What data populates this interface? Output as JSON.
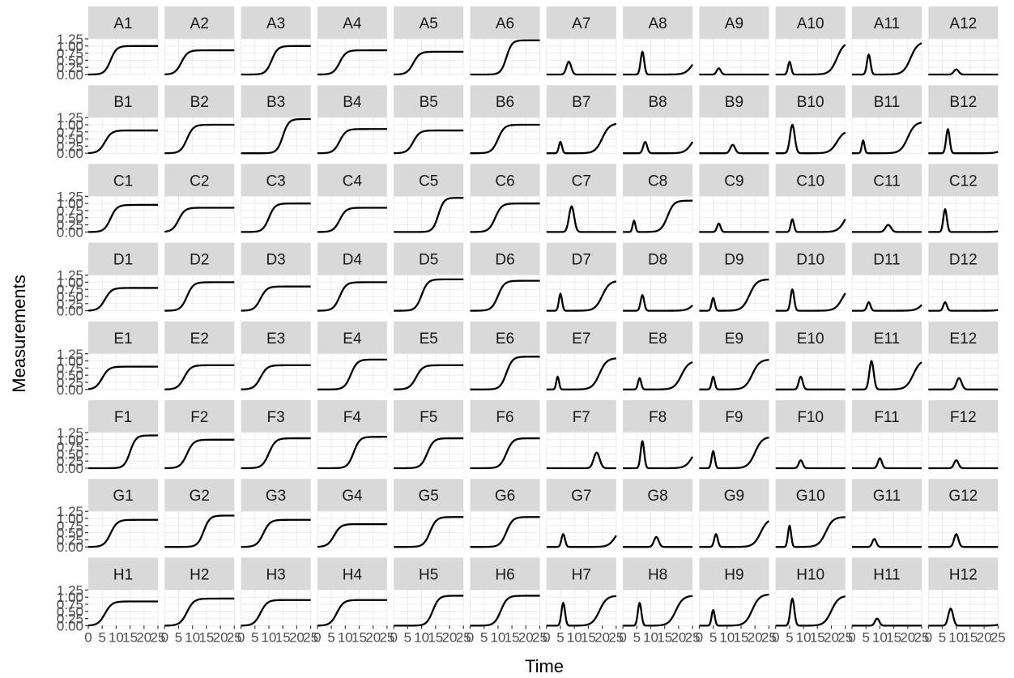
{
  "chart_data": {
    "type": "line",
    "facet_layout": "8 rows x 12 columns, free y-axis ticks on first column, x-axis ticks on bottom row",
    "xlabel": "Time",
    "ylabel": "Measurements",
    "x_ticks": [
      "0",
      "5",
      "10",
      "15",
      "20",
      "25"
    ],
    "y_ticks": [
      "0.00",
      "0.25",
      "0.50",
      "0.75",
      "1.00",
      "1.25"
    ],
    "xlim": [
      0,
      25
    ],
    "ylim": [
      0,
      1.25
    ],
    "grid": true,
    "colors": {
      "line": "#000000",
      "strip": "#d9d9d9",
      "grid": "#ebebeb"
    },
    "facets": [
      {
        "label": "A1",
        "kind": "s",
        "p": [
          8,
          1.0,
          1.1
        ]
      },
      {
        "label": "A2",
        "kind": "s",
        "p": [
          6,
          0.85,
          1.15
        ]
      },
      {
        "label": "A3",
        "kind": "s",
        "p": [
          11,
          1.0,
          1.1
        ]
      },
      {
        "label": "A4",
        "kind": "s",
        "p": [
          8,
          0.85,
          1.15
        ]
      },
      {
        "label": "A5",
        "kind": "s",
        "p": [
          7,
          0.8,
          1.15
        ]
      },
      {
        "label": "A6",
        "kind": "s",
        "p": [
          13,
          1.2,
          1.0
        ]
      },
      {
        "label": "A7",
        "kind": "p",
        "p": [
          8,
          0.45,
          1.2
        ]
      },
      {
        "label": "A8",
        "kind": "ps",
        "p": [
          7,
          0.8,
          0.9,
          25,
          0.7,
          1.3
        ]
      },
      {
        "label": "A9",
        "kind": "p",
        "p": [
          7,
          0.22,
          1.0
        ]
      },
      {
        "label": "A10",
        "kind": "ps",
        "p": [
          5,
          0.45,
          0.8,
          22,
          1.15,
          1.3
        ]
      },
      {
        "label": "A11",
        "kind": "ps",
        "p": [
          6,
          0.7,
          0.9,
          21,
          1.15,
          1.3
        ]
      },
      {
        "label": "A12",
        "kind": "p",
        "p": [
          10,
          0.18,
          1.2
        ]
      },
      {
        "label": "B1",
        "kind": "s",
        "p": [
          6,
          0.8,
          1.2
        ]
      },
      {
        "label": "B2",
        "kind": "s",
        "p": [
          8,
          1.0,
          1.15
        ]
      },
      {
        "label": "B3",
        "kind": "s",
        "p": [
          15,
          1.2,
          1.05
        ]
      },
      {
        "label": "B4",
        "kind": "s",
        "p": [
          8,
          0.85,
          1.15
        ]
      },
      {
        "label": "B5",
        "kind": "s",
        "p": [
          7,
          0.8,
          1.15
        ]
      },
      {
        "label": "B6",
        "kind": "s",
        "p": [
          10,
          1.0,
          1.15
        ]
      },
      {
        "label": "B7",
        "kind": "ps",
        "p": [
          5,
          0.4,
          0.8,
          20,
          1.05,
          1.3
        ]
      },
      {
        "label": "B8",
        "kind": "ps",
        "p": [
          8,
          0.4,
          1.0,
          25,
          0.8,
          1.3
        ]
      },
      {
        "label": "B9",
        "kind": "p",
        "p": [
          12,
          0.3,
          1.2
        ]
      },
      {
        "label": "B10",
        "kind": "ps",
        "p": [
          6,
          1.0,
          1.2,
          22,
          0.8,
          1.3
        ]
      },
      {
        "label": "B11",
        "kind": "ps",
        "p": [
          4,
          0.45,
          0.7,
          20,
          1.1,
          1.3
        ]
      },
      {
        "label": "B12",
        "kind": "ps",
        "p": [
          7,
          0.85,
          0.9,
          27,
          0.3,
          1.3
        ]
      },
      {
        "label": "C1",
        "kind": "s",
        "p": [
          8,
          0.95,
          1.15
        ]
      },
      {
        "label": "C2",
        "kind": "s",
        "p": [
          5,
          0.85,
          1.15
        ]
      },
      {
        "label": "C3",
        "kind": "s",
        "p": [
          10,
          1.0,
          1.1
        ]
      },
      {
        "label": "C4",
        "kind": "s",
        "p": [
          8,
          0.85,
          1.15
        ]
      },
      {
        "label": "C5",
        "kind": "s",
        "p": [
          16,
          1.2,
          1.0
        ]
      },
      {
        "label": "C6",
        "kind": "s",
        "p": [
          9,
          1.0,
          1.15
        ]
      },
      {
        "label": "C7",
        "kind": "p",
        "p": [
          9,
          0.9,
          1.3
        ]
      },
      {
        "label": "C8",
        "kind": "ps",
        "p": [
          4,
          0.4,
          0.7,
          16,
          1.1,
          1.15
        ]
      },
      {
        "label": "C9",
        "kind": "p",
        "p": [
          7,
          0.3,
          0.9
        ]
      },
      {
        "label": "C10",
        "kind": "ps",
        "p": [
          6,
          0.45,
          0.8,
          25,
          0.9,
          1.3
        ]
      },
      {
        "label": "C11",
        "kind": "p",
        "p": [
          13,
          0.25,
          1.4
        ]
      },
      {
        "label": "C12",
        "kind": "ps",
        "p": [
          6,
          0.8,
          0.9,
          28,
          0.3,
          1.3
        ]
      },
      {
        "label": "D1",
        "kind": "s",
        "p": [
          6,
          0.8,
          1.2
        ]
      },
      {
        "label": "D2",
        "kind": "s",
        "p": [
          8,
          1.0,
          1.15
        ]
      },
      {
        "label": "D3",
        "kind": "s",
        "p": [
          7,
          0.85,
          1.15
        ]
      },
      {
        "label": "D4",
        "kind": "s",
        "p": [
          8,
          1.0,
          1.15
        ]
      },
      {
        "label": "D5",
        "kind": "s",
        "p": [
          10,
          1.1,
          1.1
        ]
      },
      {
        "label": "D6",
        "kind": "s",
        "p": [
          10,
          1.05,
          1.15
        ]
      },
      {
        "label": "D7",
        "kind": "ps",
        "p": [
          5,
          0.6,
          0.8,
          20,
          1.05,
          1.3
        ]
      },
      {
        "label": "D8",
        "kind": "ps",
        "p": [
          7,
          0.55,
          0.9,
          26,
          0.6,
          1.3
        ]
      },
      {
        "label": "D9",
        "kind": "ps",
        "p": [
          5,
          0.45,
          0.8,
          18,
          1.1,
          1.3
        ]
      },
      {
        "label": "D10",
        "kind": "ps",
        "p": [
          6,
          0.75,
          0.9,
          24,
          0.9,
          1.3
        ]
      },
      {
        "label": "D11",
        "kind": "ps",
        "p": [
          6,
          0.3,
          0.9,
          26,
          0.65,
          1.3
        ]
      },
      {
        "label": "D12",
        "kind": "ps",
        "p": [
          6,
          0.3,
          0.9,
          28,
          0.3,
          1.3
        ]
      },
      {
        "label": "E1",
        "kind": "s",
        "p": [
          5,
          0.8,
          1.2
        ]
      },
      {
        "label": "E2",
        "kind": "s",
        "p": [
          7,
          0.85,
          1.2
        ]
      },
      {
        "label": "E3",
        "kind": "s",
        "p": [
          7,
          0.85,
          1.2
        ]
      },
      {
        "label": "E4",
        "kind": "s",
        "p": [
          12,
          1.05,
          1.15
        ]
      },
      {
        "label": "E5",
        "kind": "s",
        "p": [
          8,
          0.85,
          1.2
        ]
      },
      {
        "label": "E6",
        "kind": "s",
        "p": [
          13,
          1.15,
          1.1
        ]
      },
      {
        "label": "E7",
        "kind": "ps",
        "p": [
          4,
          0.45,
          0.7,
          19,
          1.1,
          1.3
        ]
      },
      {
        "label": "E8",
        "kind": "ps",
        "p": [
          6,
          0.4,
          0.8,
          21,
          1.0,
          1.3
        ]
      },
      {
        "label": "E9",
        "kind": "ps",
        "p": [
          5,
          0.45,
          0.8,
          19,
          1.05,
          1.3
        ]
      },
      {
        "label": "E10",
        "kind": "p",
        "p": [
          9,
          0.45,
          1.0
        ]
      },
      {
        "label": "E11",
        "kind": "ps",
        "p": [
          7,
          1.0,
          1.1,
          22,
          1.05,
          1.3
        ]
      },
      {
        "label": "E12",
        "kind": "p",
        "p": [
          11,
          0.4,
          1.3
        ]
      },
      {
        "label": "F1",
        "kind": "s",
        "p": [
          15,
          1.15,
          1.05
        ]
      },
      {
        "label": "F2",
        "kind": "s",
        "p": [
          8,
          1.0,
          1.2
        ]
      },
      {
        "label": "F3",
        "kind": "s",
        "p": [
          10,
          1.05,
          1.2
        ]
      },
      {
        "label": "F4",
        "kind": "s",
        "p": [
          13,
          1.1,
          1.1
        ]
      },
      {
        "label": "F5",
        "kind": "s",
        "p": [
          12,
          1.05,
          1.15
        ]
      },
      {
        "label": "F6",
        "kind": "s",
        "p": [
          13,
          1.05,
          1.15
        ]
      },
      {
        "label": "F7",
        "kind": "p",
        "p": [
          18,
          0.55,
          1.5
        ]
      },
      {
        "label": "F8",
        "kind": "ps",
        "p": [
          7,
          0.95,
          0.9,
          25,
          0.8,
          1.3
        ]
      },
      {
        "label": "F9",
        "kind": "ps",
        "p": [
          5,
          0.6,
          0.8,
          20,
          1.1,
          1.3
        ]
      },
      {
        "label": "F10",
        "kind": "p",
        "p": [
          9,
          0.28,
          1.0
        ]
      },
      {
        "label": "F11",
        "kind": "p",
        "p": [
          10,
          0.35,
          1.0
        ]
      },
      {
        "label": "F12",
        "kind": "p",
        "p": [
          10,
          0.28,
          1.1
        ]
      },
      {
        "label": "G1",
        "kind": "s",
        "p": [
          8,
          0.95,
          1.2
        ]
      },
      {
        "label": "G2",
        "kind": "s",
        "p": [
          14,
          1.1,
          1.1
        ]
      },
      {
        "label": "G3",
        "kind": "s",
        "p": [
          8,
          0.95,
          1.2
        ]
      },
      {
        "label": "G4",
        "kind": "s",
        "p": [
          6,
          0.8,
          1.2
        ]
      },
      {
        "label": "G5",
        "kind": "s",
        "p": [
          13,
          1.05,
          1.15
        ]
      },
      {
        "label": "G6",
        "kind": "s",
        "p": [
          13,
          1.05,
          1.15
        ]
      },
      {
        "label": "G7",
        "kind": "ps",
        "p": [
          6,
          0.45,
          0.9,
          25,
          0.8,
          1.3
        ]
      },
      {
        "label": "G8",
        "kind": "p",
        "p": [
          12,
          0.35,
          1.2
        ]
      },
      {
        "label": "G9",
        "kind": "ps",
        "p": [
          6,
          0.45,
          0.9,
          22,
          1.0,
          1.3
        ]
      },
      {
        "label": "G10",
        "kind": "ps",
        "p": [
          5,
          0.75,
          0.8,
          18,
          1.05,
          1.3
        ]
      },
      {
        "label": "G11",
        "kind": "p",
        "p": [
          8,
          0.28,
          1.0
        ]
      },
      {
        "label": "G12",
        "kind": "p",
        "p": [
          10,
          0.45,
          1.1
        ]
      },
      {
        "label": "H1",
        "kind": "s",
        "p": [
          6,
          0.85,
          1.25
        ]
      },
      {
        "label": "H2",
        "kind": "s",
        "p": [
          8,
          0.95,
          1.25
        ]
      },
      {
        "label": "H3",
        "kind": "s",
        "p": [
          7,
          0.9,
          1.2
        ]
      },
      {
        "label": "H4",
        "kind": "s",
        "p": [
          7,
          0.9,
          1.2
        ]
      },
      {
        "label": "H5",
        "kind": "s",
        "p": [
          14,
          1.05,
          1.1
        ]
      },
      {
        "label": "H6",
        "kind": "s",
        "p": [
          11,
          1.05,
          1.15
        ]
      },
      {
        "label": "H7",
        "kind": "ps",
        "p": [
          6,
          0.8,
          0.9,
          19,
          1.05,
          1.3
        ]
      },
      {
        "label": "H8",
        "kind": "ps",
        "p": [
          6,
          0.8,
          0.9,
          19,
          1.05,
          1.3
        ]
      },
      {
        "label": "H9",
        "kind": "ps",
        "p": [
          5,
          0.55,
          0.8,
          19,
          1.1,
          1.3
        ]
      },
      {
        "label": "H10",
        "kind": "ps",
        "p": [
          6,
          0.95,
          1.0,
          20,
          1.05,
          1.3
        ]
      },
      {
        "label": "H11",
        "kind": "p",
        "p": [
          9,
          0.25,
          1.1
        ]
      },
      {
        "label": "H12",
        "kind": "ps",
        "p": [
          8,
          0.6,
          1.2,
          28,
          0.4,
          1.3
        ]
      }
    ]
  }
}
